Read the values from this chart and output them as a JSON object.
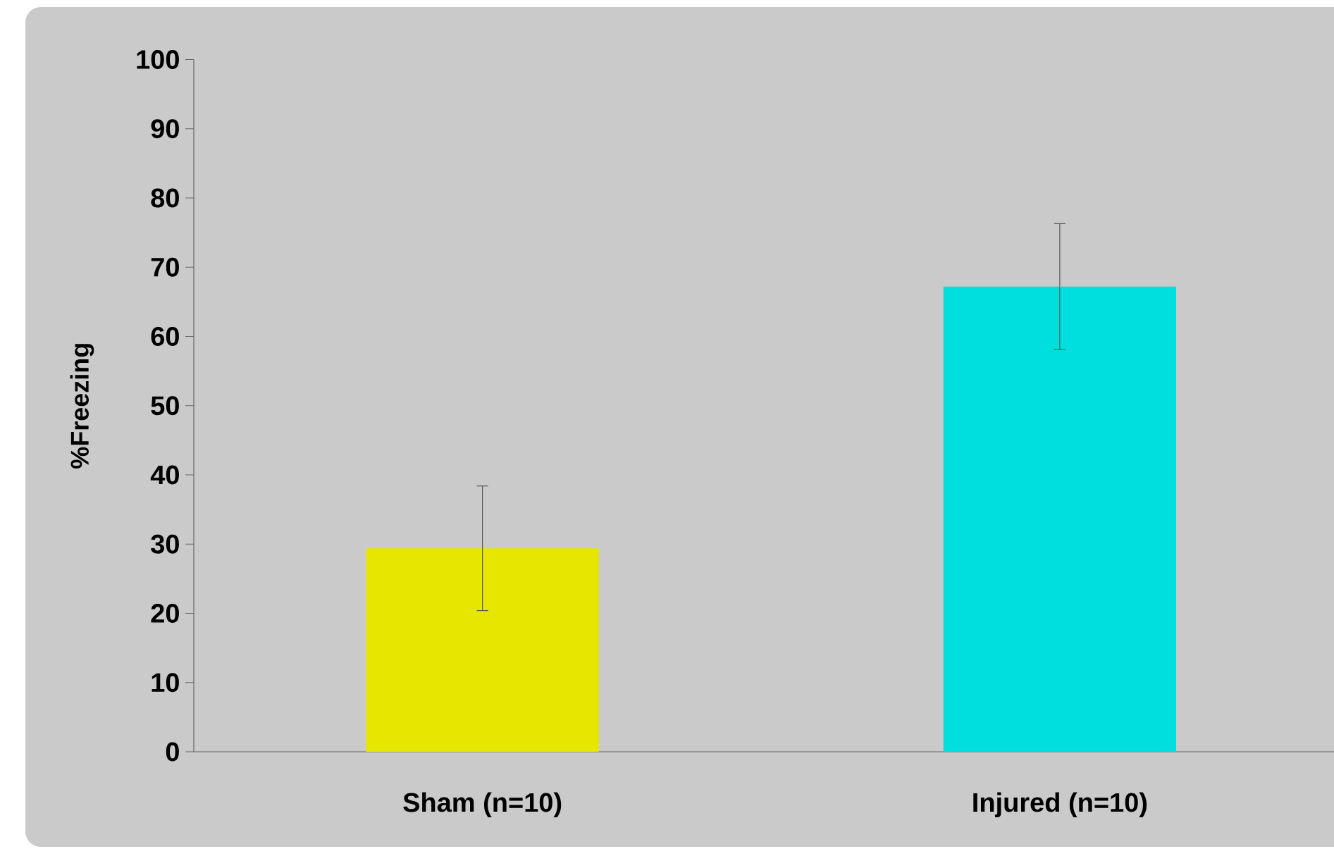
{
  "chart_data": {
    "type": "bar",
    "ylabel": "%Freezing",
    "categories": [
      "Sham (n=10)",
      "Injured (n=10)"
    ],
    "values": [
      29.4,
      67.2
    ],
    "errors": [
      9,
      9.1
    ],
    "colors": [
      "#e6e600",
      "#00dede"
    ],
    "ylim": [
      0,
      100
    ],
    "yticks": [
      0,
      10,
      20,
      30,
      40,
      50,
      60,
      70,
      80,
      90,
      100
    ]
  }
}
